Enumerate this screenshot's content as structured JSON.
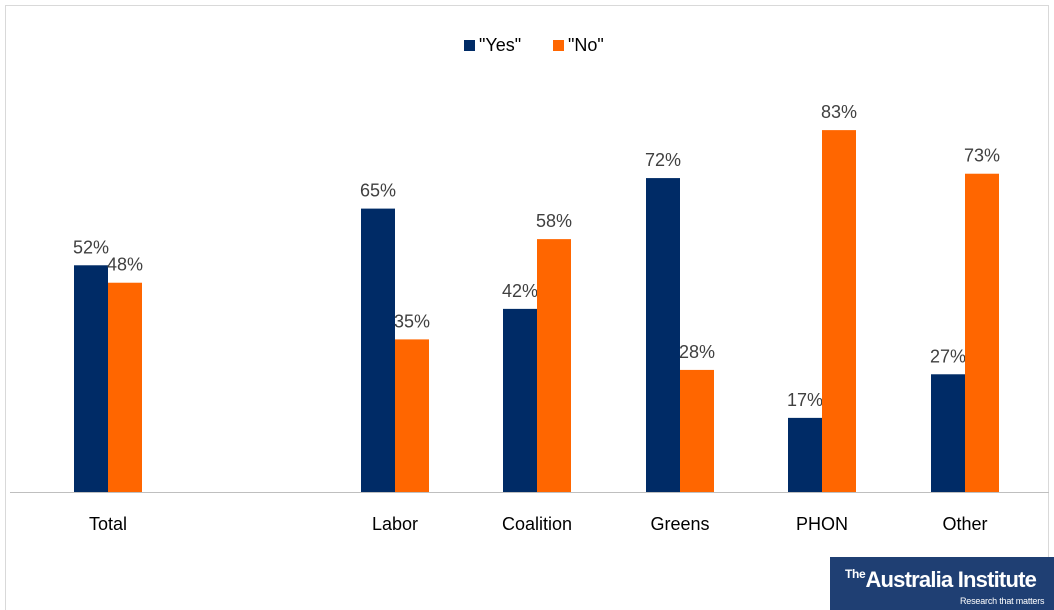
{
  "chart_data": {
    "type": "bar",
    "categories": [
      "Total",
      "Labor",
      "Coalition",
      "Greens",
      "PHON",
      "Other"
    ],
    "series": [
      {
        "name": "\"Yes\"",
        "values": [
          52,
          65,
          42,
          72,
          17,
          27
        ],
        "labels": [
          "52%",
          "65%",
          "42%",
          "72%",
          "17%",
          "27%"
        ],
        "color": "#002b66"
      },
      {
        "name": "\"No\"",
        "values": [
          48,
          35,
          58,
          28,
          83,
          73
        ],
        "labels": [
          "48%",
          "35%",
          "58%",
          "28%",
          "83%",
          "73%"
        ],
        "color": "#ff6600"
      }
    ],
    "ylim": [
      0,
      100
    ],
    "grid": false,
    "legend": "top-center",
    "title": "",
    "xlabel": "",
    "ylabel": ""
  },
  "logo": {
    "prefix": "The",
    "name": "Australia Institute",
    "tagline": "Research that matters"
  }
}
